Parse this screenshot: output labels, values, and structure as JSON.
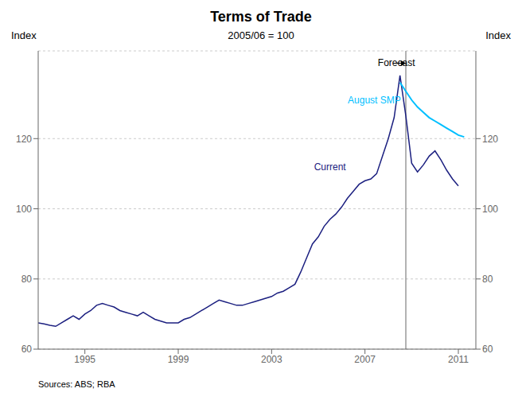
{
  "chart_data": {
    "type": "line",
    "title": "Terms of Trade",
    "subtitle": "2005/06 = 100",
    "source": "Sources: ABS; RBA",
    "y_label": "Index",
    "y2_label": "Index",
    "xlim": [
      1993.0,
      2011.75
    ],
    "xticks": [
      1995,
      1999,
      2003,
      2007,
      2011
    ],
    "ylim": [
      60,
      145
    ],
    "yticks": [
      60,
      80,
      100,
      120
    ],
    "y2lim": [
      60,
      145
    ],
    "y2ticks": [
      60,
      80,
      100,
      120
    ],
    "grid": "y",
    "vlines": [
      2008.75
    ],
    "series": [
      {
        "name": "Current",
        "color": "#1c2080",
        "label_x": 2005.5,
        "label_y": 112,
        "x": [
          1993.0,
          1993.25,
          1993.5,
          1993.75,
          1994.0,
          1994.25,
          1994.5,
          1994.75,
          1995.0,
          1995.25,
          1995.5,
          1995.75,
          1996.0,
          1996.25,
          1996.5,
          1996.75,
          1997.0,
          1997.25,
          1997.5,
          1997.75,
          1998.0,
          1998.25,
          1998.5,
          1998.75,
          1999.0,
          1999.25,
          1999.5,
          1999.75,
          2000.0,
          2000.25,
          2000.5,
          2000.75,
          2001.0,
          2001.25,
          2001.5,
          2001.75,
          2002.0,
          2002.25,
          2002.5,
          2002.75,
          2003.0,
          2003.25,
          2003.5,
          2003.75,
          2004.0,
          2004.25,
          2004.5,
          2004.75,
          2005.0,
          2005.25,
          2005.5,
          2005.75,
          2006.0,
          2006.25,
          2006.5,
          2006.75,
          2007.0,
          2007.25,
          2007.5,
          2007.75,
          2008.0,
          2008.25,
          2008.5,
          2008.75,
          2009.0,
          2009.25,
          2009.5,
          2009.75,
          2010.0,
          2010.25,
          2010.5,
          2010.75,
          2011.0
        ],
        "values": [
          67.5,
          67.2,
          66.8,
          66.5,
          67.5,
          68.5,
          69.5,
          68.5,
          70.0,
          71.0,
          72.5,
          73.0,
          72.5,
          72.0,
          71.0,
          70.5,
          70.0,
          69.5,
          70.5,
          69.5,
          68.5,
          68.0,
          67.5,
          67.5,
          67.5,
          68.5,
          69.0,
          70.0,
          71.0,
          72.0,
          73.0,
          74.0,
          73.5,
          73.0,
          72.5,
          72.5,
          73.0,
          73.5,
          74.0,
          74.5,
          75.0,
          76.0,
          76.5,
          77.5,
          78.5,
          82.0,
          86.0,
          90.0,
          92.0,
          95.0,
          97.0,
          98.5,
          100.5,
          103.0,
          105.0,
          107.0,
          108.0,
          108.5,
          110.0,
          115.0,
          120.0,
          126.0,
          138.0,
          126.5,
          113.0,
          110.5,
          112.5,
          115.0,
          116.5,
          114.0,
          111.0,
          108.5,
          106.5
        ]
      },
      {
        "name": "August SMP",
        "color": "#00bfff",
        "label_x": 2007.4,
        "label_y": 131,
        "x": [
          2008.5,
          2008.75,
          2009.0,
          2009.25,
          2009.5,
          2009.75,
          2010.0,
          2010.25,
          2010.5,
          2010.75,
          2011.0,
          2011.25
        ],
        "values": [
          136.0,
          133.5,
          131.0,
          129.0,
          127.5,
          126.0,
          125.0,
          124.0,
          123.0,
          122.0,
          121.0,
          120.5
        ]
      }
    ],
    "annotations": [
      {
        "text": "Forecast",
        "x": 2007.55,
        "y": 141.5,
        "arrow_x": 2008.75,
        "arrow_y": 141.5
      }
    ]
  }
}
